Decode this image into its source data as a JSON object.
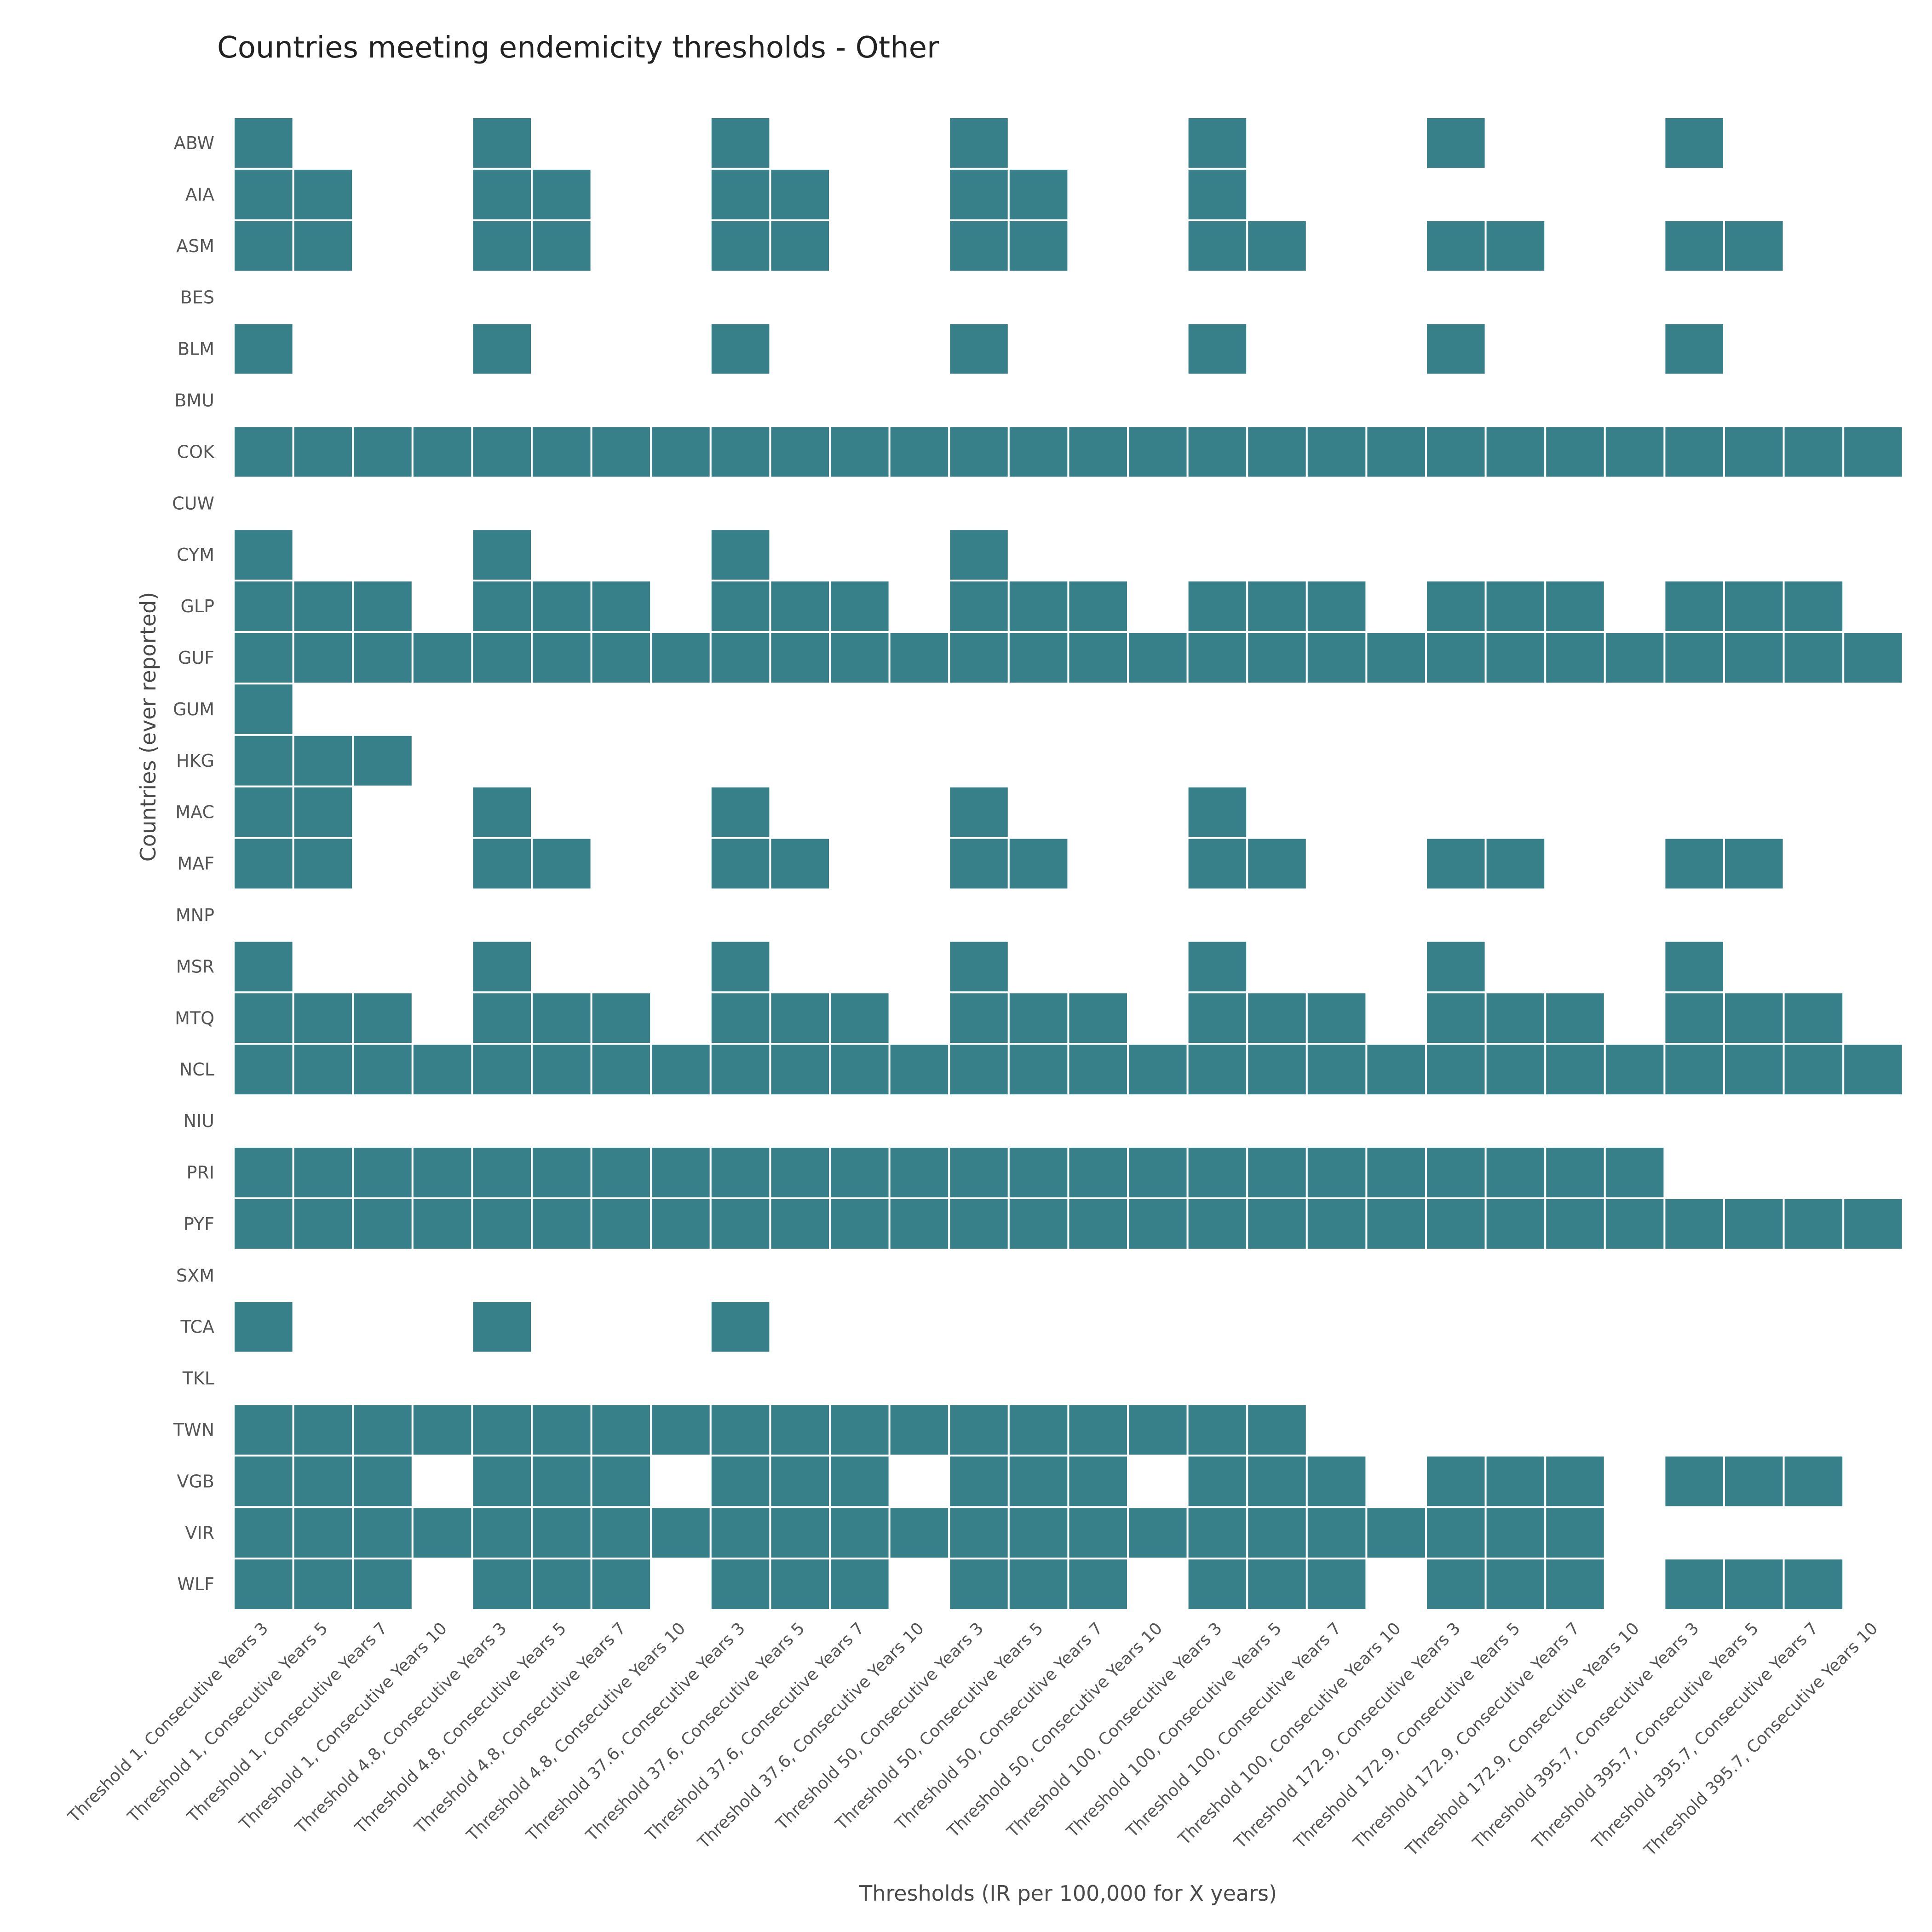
{
  "chart_data": {
    "type": "heatmap",
    "title": "Countries meeting endemicity thresholds - Other",
    "xlabel": "Thresholds (IR per 100,000 for X years)",
    "ylabel": "Countries (ever reported)",
    "legend": "none",
    "grid": false,
    "cell_color": "#37808a",
    "empty_color": "#ffffff",
    "thresholds": [
      "1",
      "4.8",
      "37.6",
      "50",
      "100",
      "172.9",
      "395.7"
    ],
    "years": [
      3,
      5,
      7,
      10
    ],
    "x": [
      "Threshold 1, Consecutive Years 3",
      "Threshold 1, Consecutive Years 5",
      "Threshold 1, Consecutive Years 7",
      "Threshold 1, Consecutive Years 10",
      "Threshold 4.8, Consecutive Years 3",
      "Threshold 4.8, Consecutive Years 5",
      "Threshold 4.8, Consecutive Years 7",
      "Threshold 4.8, Consecutive Years 10",
      "Threshold 37.6, Consecutive Years 3",
      "Threshold 37.6, Consecutive Years 5",
      "Threshold 37.6, Consecutive Years 7",
      "Threshold 37.6, Consecutive Years 10",
      "Threshold 50, Consecutive Years 3",
      "Threshold 50, Consecutive Years 5",
      "Threshold 50, Consecutive Years 7",
      "Threshold 50, Consecutive Years 10",
      "Threshold 100, Consecutive Years 3",
      "Threshold 100, Consecutive Years 5",
      "Threshold 100, Consecutive Years 7",
      "Threshold 100, Consecutive Years 10",
      "Threshold 172.9, Consecutive Years 3",
      "Threshold 172.9, Consecutive Years 5",
      "Threshold 172.9, Consecutive Years 7",
      "Threshold 172.9, Consecutive Years 10",
      "Threshold 395.7, Consecutive Years 3",
      "Threshold 395.7, Consecutive Years 5",
      "Threshold 395.7, Consecutive Years 7",
      "Threshold 395.7, Consecutive Years 10"
    ],
    "y": [
      "ABW",
      "AIA",
      "ASM",
      "BES",
      "BLM",
      "BMU",
      "COK",
      "CUW",
      "CYM",
      "GLP",
      "GUF",
      "GUM",
      "HKG",
      "MAC",
      "MAF",
      "MNP",
      "MSR",
      "MTQ",
      "NCL",
      "NIU",
      "PRI",
      "PYF",
      "SXM",
      "TCA",
      "TKL",
      "TWN",
      "VGB",
      "VIR",
      "WLF"
    ],
    "values": [
      [
        1,
        0,
        0,
        0,
        1,
        0,
        0,
        0,
        1,
        0,
        0,
        0,
        1,
        0,
        0,
        0,
        1,
        0,
        0,
        0,
        1,
        0,
        0,
        0,
        1,
        0,
        0,
        0
      ],
      [
        1,
        1,
        0,
        0,
        1,
        1,
        0,
        0,
        1,
        1,
        0,
        0,
        1,
        1,
        0,
        0,
        1,
        0,
        0,
        0,
        0,
        0,
        0,
        0,
        0,
        0,
        0,
        0
      ],
      [
        1,
        1,
        0,
        0,
        1,
        1,
        0,
        0,
        1,
        1,
        0,
        0,
        1,
        1,
        0,
        0,
        1,
        1,
        0,
        0,
        1,
        1,
        0,
        0,
        1,
        1,
        0,
        0
      ],
      [
        0,
        0,
        0,
        0,
        0,
        0,
        0,
        0,
        0,
        0,
        0,
        0,
        0,
        0,
        0,
        0,
        0,
        0,
        0,
        0,
        0,
        0,
        0,
        0,
        0,
        0,
        0,
        0
      ],
      [
        1,
        0,
        0,
        0,
        1,
        0,
        0,
        0,
        1,
        0,
        0,
        0,
        1,
        0,
        0,
        0,
        1,
        0,
        0,
        0,
        1,
        0,
        0,
        0,
        1,
        0,
        0,
        0
      ],
      [
        0,
        0,
        0,
        0,
        0,
        0,
        0,
        0,
        0,
        0,
        0,
        0,
        0,
        0,
        0,
        0,
        0,
        0,
        0,
        0,
        0,
        0,
        0,
        0,
        0,
        0,
        0,
        0
      ],
      [
        1,
        1,
        1,
        1,
        1,
        1,
        1,
        1,
        1,
        1,
        1,
        1,
        1,
        1,
        1,
        1,
        1,
        1,
        1,
        1,
        1,
        1,
        1,
        1,
        1,
        1,
        1,
        1
      ],
      [
        0,
        0,
        0,
        0,
        0,
        0,
        0,
        0,
        0,
        0,
        0,
        0,
        0,
        0,
        0,
        0,
        0,
        0,
        0,
        0,
        0,
        0,
        0,
        0,
        0,
        0,
        0,
        0
      ],
      [
        1,
        0,
        0,
        0,
        1,
        0,
        0,
        0,
        1,
        0,
        0,
        0,
        1,
        0,
        0,
        0,
        0,
        0,
        0,
        0,
        0,
        0,
        0,
        0,
        0,
        0,
        0,
        0
      ],
      [
        1,
        1,
        1,
        0,
        1,
        1,
        1,
        0,
        1,
        1,
        1,
        0,
        1,
        1,
        1,
        0,
        1,
        1,
        1,
        0,
        1,
        1,
        1,
        0,
        1,
        1,
        1,
        0
      ],
      [
        1,
        1,
        1,
        1,
        1,
        1,
        1,
        1,
        1,
        1,
        1,
        1,
        1,
        1,
        1,
        1,
        1,
        1,
        1,
        1,
        1,
        1,
        1,
        1,
        1,
        1,
        1,
        1
      ],
      [
        1,
        0,
        0,
        0,
        0,
        0,
        0,
        0,
        0,
        0,
        0,
        0,
        0,
        0,
        0,
        0,
        0,
        0,
        0,
        0,
        0,
        0,
        0,
        0,
        0,
        0,
        0,
        0
      ],
      [
        1,
        1,
        1,
        0,
        0,
        0,
        0,
        0,
        0,
        0,
        0,
        0,
        0,
        0,
        0,
        0,
        0,
        0,
        0,
        0,
        0,
        0,
        0,
        0,
        0,
        0,
        0,
        0
      ],
      [
        1,
        1,
        0,
        0,
        1,
        0,
        0,
        0,
        1,
        0,
        0,
        0,
        1,
        0,
        0,
        0,
        1,
        0,
        0,
        0,
        0,
        0,
        0,
        0,
        0,
        0,
        0,
        0
      ],
      [
        1,
        1,
        0,
        0,
        1,
        1,
        0,
        0,
        1,
        1,
        0,
        0,
        1,
        1,
        0,
        0,
        1,
        1,
        0,
        0,
        1,
        1,
        0,
        0,
        1,
        1,
        0,
        0
      ],
      [
        0,
        0,
        0,
        0,
        0,
        0,
        0,
        0,
        0,
        0,
        0,
        0,
        0,
        0,
        0,
        0,
        0,
        0,
        0,
        0,
        0,
        0,
        0,
        0,
        0,
        0,
        0,
        0
      ],
      [
        1,
        0,
        0,
        0,
        1,
        0,
        0,
        0,
        1,
        0,
        0,
        0,
        1,
        0,
        0,
        0,
        1,
        0,
        0,
        0,
        1,
        0,
        0,
        0,
        1,
        0,
        0,
        0
      ],
      [
        1,
        1,
        1,
        0,
        1,
        1,
        1,
        0,
        1,
        1,
        1,
        0,
        1,
        1,
        1,
        0,
        1,
        1,
        1,
        0,
        1,
        1,
        1,
        0,
        1,
        1,
        1,
        0
      ],
      [
        1,
        1,
        1,
        1,
        1,
        1,
        1,
        1,
        1,
        1,
        1,
        1,
        1,
        1,
        1,
        1,
        1,
        1,
        1,
        1,
        1,
        1,
        1,
        1,
        1,
        1,
        1,
        1
      ],
      [
        0,
        0,
        0,
        0,
        0,
        0,
        0,
        0,
        0,
        0,
        0,
        0,
        0,
        0,
        0,
        0,
        0,
        0,
        0,
        0,
        0,
        0,
        0,
        0,
        0,
        0,
        0,
        0
      ],
      [
        1,
        1,
        1,
        1,
        1,
        1,
        1,
        1,
        1,
        1,
        1,
        1,
        1,
        1,
        1,
        1,
        1,
        1,
        1,
        1,
        1,
        1,
        1,
        1,
        0,
        0,
        0,
        0
      ],
      [
        1,
        1,
        1,
        1,
        1,
        1,
        1,
        1,
        1,
        1,
        1,
        1,
        1,
        1,
        1,
        1,
        1,
        1,
        1,
        1,
        1,
        1,
        1,
        1,
        1,
        1,
        1,
        1
      ],
      [
        0,
        0,
        0,
        0,
        0,
        0,
        0,
        0,
        0,
        0,
        0,
        0,
        0,
        0,
        0,
        0,
        0,
        0,
        0,
        0,
        0,
        0,
        0,
        0,
        0,
        0,
        0,
        0
      ],
      [
        1,
        0,
        0,
        0,
        1,
        0,
        0,
        0,
        1,
        0,
        0,
        0,
        0,
        0,
        0,
        0,
        0,
        0,
        0,
        0,
        0,
        0,
        0,
        0,
        0,
        0,
        0,
        0
      ],
      [
        0,
        0,
        0,
        0,
        0,
        0,
        0,
        0,
        0,
        0,
        0,
        0,
        0,
        0,
        0,
        0,
        0,
        0,
        0,
        0,
        0,
        0,
        0,
        0,
        0,
        0,
        0,
        0
      ],
      [
        1,
        1,
        1,
        1,
        1,
        1,
        1,
        1,
        1,
        1,
        1,
        1,
        1,
        1,
        1,
        1,
        1,
        1,
        0,
        0,
        0,
        0,
        0,
        0,
        0,
        0,
        0,
        0
      ],
      [
        1,
        1,
        1,
        0,
        1,
        1,
        1,
        0,
        1,
        1,
        1,
        0,
        1,
        1,
        1,
        0,
        1,
        1,
        1,
        0,
        1,
        1,
        1,
        0,
        1,
        1,
        1,
        0
      ],
      [
        1,
        1,
        1,
        1,
        1,
        1,
        1,
        1,
        1,
        1,
        1,
        1,
        1,
        1,
        1,
        1,
        1,
        1,
        1,
        1,
        1,
        1,
        1,
        0,
        0,
        0,
        0,
        0
      ],
      [
        1,
        1,
        1,
        0,
        1,
        1,
        1,
        0,
        1,
        1,
        1,
        0,
        1,
        1,
        1,
        0,
        1,
        1,
        1,
        0,
        1,
        1,
        1,
        0,
        1,
        1,
        1,
        0
      ]
    ]
  }
}
